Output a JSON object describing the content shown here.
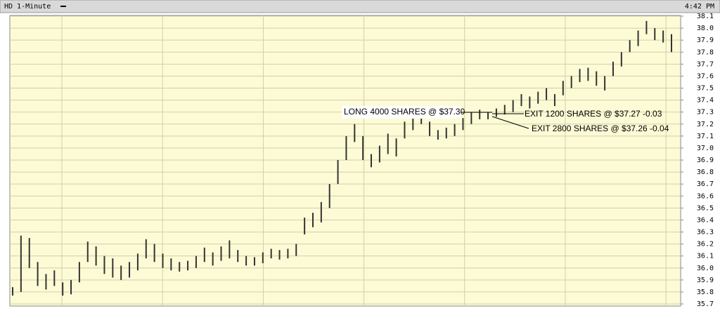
{
  "chart_data": {
    "type": "hilo",
    "title": "HD 1-Minute",
    "time": "4:42 PM",
    "color": "#333333",
    "ylim": [
      35.7,
      38.1
    ],
    "yticks": [
      35.7,
      35.8,
      35.9,
      {
        "value": 36.0,
        "label": "36.0"
      },
      36.1,
      36.2,
      36.3,
      36.4,
      36.5,
      36.6,
      36.7,
      36.8,
      36.9,
      {
        "value": 37.0,
        "label": "37.0"
      },
      37.1,
      37.2,
      37.3,
      37.4,
      37.5,
      37.6,
      37.7,
      37.8,
      37.9,
      {
        "value": 38.0,
        "label": "38.0"
      },
      38.1
    ],
    "grid": true,
    "high": [
      35.84,
      36.27,
      36.25,
      36.05,
      35.95,
      35.98,
      35.88,
      35.9,
      36.05,
      36.22,
      36.18,
      36.1,
      36.08,
      36.02,
      36.05,
      36.12,
      36.24,
      36.2,
      36.12,
      36.08,
      36.05,
      36.06,
      36.1,
      36.17,
      36.13,
      36.18,
      36.23,
      36.15,
      36.1,
      36.09,
      36.13,
      36.16,
      36.15,
      36.16,
      36.2,
      36.42,
      36.46,
      36.55,
      36.7,
      36.9,
      37.1,
      37.2,
      37.1,
      36.95,
      37.02,
      37.12,
      37.08,
      37.22,
      37.27,
      37.3,
      37.22,
      37.15,
      37.17,
      37.2,
      37.25,
      37.3,
      37.32,
      37.3,
      37.33,
      37.36,
      37.4,
      37.45,
      37.43,
      37.47,
      37.5,
      37.45,
      37.56,
      37.6,
      37.66,
      37.67,
      37.64,
      37.6,
      37.72,
      37.8,
      37.9,
      37.98,
      38.06,
      38.0,
      37.98,
      37.95
    ],
    "low": [
      35.77,
      35.8,
      36.0,
      35.85,
      35.82,
      35.85,
      35.77,
      35.78,
      35.88,
      36.05,
      36.02,
      35.95,
      35.92,
      35.9,
      35.92,
      35.98,
      36.08,
      36.05,
      36.0,
      35.98,
      35.97,
      35.98,
      36.0,
      36.05,
      36.02,
      36.06,
      36.08,
      36.05,
      36.02,
      36.02,
      36.04,
      36.08,
      36.07,
      36.08,
      36.1,
      36.28,
      36.34,
      36.38,
      36.5,
      36.7,
      36.9,
      37.05,
      36.9,
      36.84,
      36.88,
      36.95,
      36.93,
      37.08,
      37.15,
      37.2,
      37.1,
      37.07,
      37.08,
      37.1,
      37.15,
      37.2,
      37.24,
      37.24,
      37.26,
      37.28,
      37.3,
      37.35,
      37.33,
      37.37,
      37.4,
      37.35,
      37.44,
      37.5,
      37.55,
      37.56,
      37.52,
      37.48,
      37.6,
      37.68,
      37.8,
      37.85,
      37.95,
      37.9,
      37.88,
      37.8
    ],
    "annotations": [
      "LONG 4000 SHARES @ $37.30",
      "EXIT 1200 SHARES @ $37.27 -0.03",
      "EXIT 2800 SHARES @ $37.26 -0.04"
    ]
  }
}
